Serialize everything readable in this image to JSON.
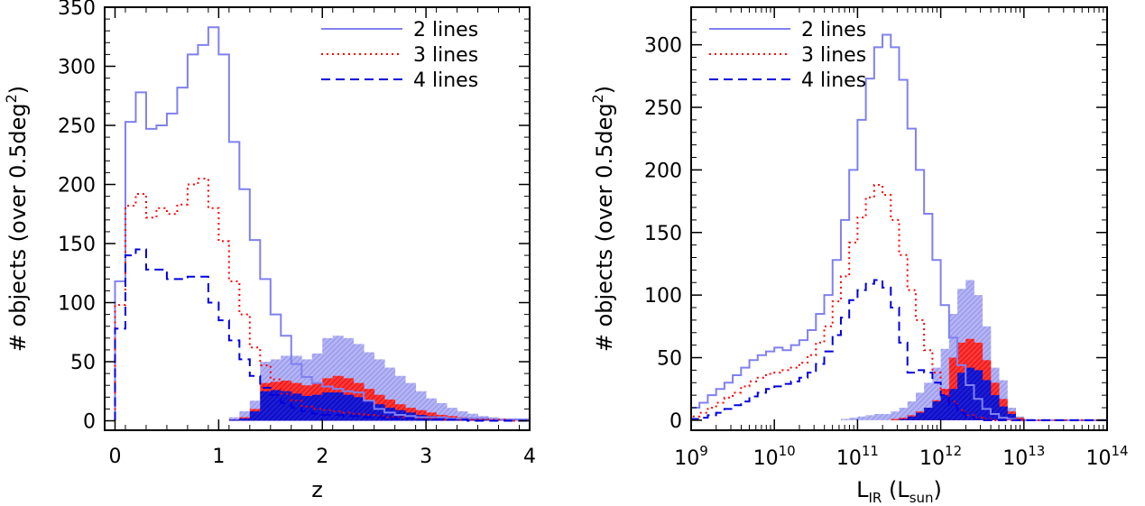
{
  "chart_data": [
    {
      "type": "histogram",
      "xlabel": "z",
      "ylabel": "# objects (over 0.5deg",
      "ylabel_sup": "2",
      "ylabel_end": ")",
      "xlim": [
        -0.1,
        4.0
      ],
      "ylim": [
        -8,
        350
      ],
      "xticks": [
        0,
        1,
        2,
        3,
        4
      ],
      "xtick_labels": [
        "0",
        "1",
        "2",
        "3",
        "4"
      ],
      "yticks": [
        0,
        50,
        100,
        150,
        200,
        250,
        300,
        350
      ],
      "ytick_labels": [
        "0",
        "50",
        "100",
        "150",
        "200",
        "250",
        "300",
        "350"
      ],
      "bin_edges": [
        0.0,
        0.1,
        0.2,
        0.3,
        0.4,
        0.5,
        0.6,
        0.7,
        0.8,
        0.9,
        1.0,
        1.1,
        1.2,
        1.3,
        1.4,
        1.5,
        1.6,
        1.7,
        1.8,
        1.9,
        2.0,
        2.1,
        2.2,
        2.3,
        2.4,
        2.5,
        2.6,
        2.7,
        2.8,
        2.9,
        3.0,
        3.1,
        3.2,
        3.3,
        3.4,
        3.5,
        3.6,
        3.7,
        3.8,
        3.9,
        4.0
      ],
      "grid": false,
      "legend": "top-right",
      "series": [
        {
          "name": "2 lines",
          "style": "solid",
          "color": "#8080f0",
          "values": [
            118,
            253,
            278,
            247,
            250,
            260,
            282,
            310,
            318,
            333,
            310,
            236,
            196,
            153,
            120,
            90,
            72,
            48,
            37,
            32,
            29,
            27,
            25,
            24,
            17,
            10,
            7,
            5,
            4,
            3,
            3,
            3,
            2,
            2,
            2,
            2,
            1,
            1,
            1,
            1
          ]
        },
        {
          "name": "3 lines",
          "style": "dotted",
          "color": "#ff0000",
          "values": [
            98,
            182,
            192,
            172,
            180,
            175,
            183,
            200,
            205,
            180,
            152,
            118,
            90,
            62,
            47,
            35,
            23,
            17,
            12,
            10,
            9,
            8,
            7,
            6,
            5,
            4,
            3,
            3,
            2,
            2,
            2,
            1,
            1,
            1,
            1,
            1,
            1,
            1,
            0,
            0
          ]
        },
        {
          "name": "4 lines",
          "style": "dashed",
          "color": "#0000e0",
          "values": [
            78,
            140,
            145,
            128,
            128,
            120,
            120,
            122,
            122,
            100,
            85,
            68,
            52,
            38,
            28,
            22,
            15,
            11,
            8,
            6,
            5,
            5,
            4,
            4,
            3,
            3,
            2,
            2,
            2,
            1,
            1,
            1,
            1,
            1,
            0,
            0,
            0,
            0,
            0,
            0
          ]
        }
      ],
      "filled_series": [
        {
          "color": "#9a9af0",
          "values": [
            0,
            0,
            0,
            0,
            0,
            0,
            0,
            0,
            0,
            0,
            0,
            3,
            8,
            17,
            50,
            52,
            55,
            55,
            52,
            57,
            70,
            72,
            70,
            65,
            58,
            52,
            45,
            38,
            32,
            25,
            19,
            15,
            11,
            8,
            6,
            4,
            3,
            2,
            2,
            2
          ]
        },
        {
          "color": "#ff2020",
          "values": [
            0,
            0,
            0,
            0,
            0,
            0,
            0,
            0,
            0,
            0,
            0,
            1,
            3,
            10,
            32,
            33,
            34,
            32,
            30,
            32,
            36,
            38,
            36,
            32,
            27,
            22,
            18,
            14,
            11,
            9,
            7,
            5,
            4,
            3,
            2,
            2,
            1,
            1,
            1,
            1
          ]
        },
        {
          "color": "#1010d0",
          "values": [
            0,
            0,
            0,
            0,
            0,
            0,
            0,
            0,
            0,
            0,
            0,
            1,
            2,
            8,
            25,
            26,
            25,
            23,
            21,
            22,
            24,
            24,
            22,
            20,
            17,
            14,
            11,
            9,
            7,
            5,
            4,
            3,
            2,
            2,
            1,
            1,
            1,
            1,
            0,
            0
          ]
        }
      ]
    },
    {
      "type": "histogram",
      "xlabel": "L",
      "xlabel_sub": "IR",
      "xlabel_mid": " (L",
      "xlabel_sub2": "sun",
      "xlabel_end": ")",
      "ylabel": "# objects (over 0.5deg",
      "ylabel_sup": "2",
      "ylabel_end": ")",
      "xscale": "log",
      "xlim": [
        9.0,
        14.0
      ],
      "ylim": [
        -8,
        330
      ],
      "xticks": [
        9,
        10,
        11,
        12,
        13,
        14
      ],
      "xtick_base": "10",
      "xtick_exponents": [
        "9",
        "10",
        "11",
        "12",
        "13",
        "14"
      ],
      "yticks": [
        0,
        50,
        100,
        150,
        200,
        250,
        300
      ],
      "ytick_labels": [
        "0",
        "50",
        "100",
        "150",
        "200",
        "250",
        "300"
      ],
      "bin_edges": [
        9.0,
        9.1,
        9.2,
        9.3,
        9.4,
        9.5,
        9.6,
        9.7,
        9.8,
        9.9,
        10.0,
        10.1,
        10.2,
        10.3,
        10.4,
        10.5,
        10.6,
        10.7,
        10.8,
        10.9,
        11.0,
        11.1,
        11.2,
        11.3,
        11.4,
        11.5,
        11.6,
        11.7,
        11.8,
        11.9,
        12.0,
        12.1,
        12.2,
        12.3,
        12.4,
        12.5,
        12.6,
        12.7,
        12.8,
        12.9,
        13.0,
        13.1,
        13.2,
        13.3,
        13.4,
        13.5,
        13.6,
        13.7,
        13.8,
        13.9,
        14.0
      ],
      "grid": false,
      "legend": "top-left",
      "series": [
        {
          "name": "2 lines",
          "style": "solid",
          "color": "#8080f0",
          "values": [
            10,
            14,
            20,
            25,
            30,
            36,
            42,
            48,
            52,
            55,
            58,
            56,
            60,
            64,
            72,
            85,
            100,
            128,
            160,
            200,
            240,
            273,
            298,
            308,
            298,
            272,
            233,
            200,
            165,
            128,
            92,
            66,
            44,
            28,
            17,
            9,
            5,
            2,
            1,
            0,
            0,
            0,
            0,
            0,
            0,
            0,
            0,
            0,
            0,
            0
          ]
        },
        {
          "name": "3 lines",
          "style": "dotted",
          "color": "#ff0000",
          "values": [
            3,
            6,
            10,
            14,
            18,
            22,
            27,
            31,
            34,
            37,
            38,
            40,
            42,
            46,
            52,
            62,
            75,
            95,
            115,
            142,
            162,
            178,
            188,
            180,
            160,
            132,
            104,
            80,
            56,
            38,
            24,
            15,
            8,
            4,
            2,
            1,
            0,
            0,
            0,
            0,
            0,
            0,
            0,
            0,
            0,
            0,
            0,
            0,
            0,
            0
          ]
        },
        {
          "name": "4 lines",
          "style": "dashed",
          "color": "#0000e0",
          "values": [
            1,
            2,
            4,
            6,
            9,
            12,
            15,
            19,
            22,
            25,
            27,
            29,
            31,
            34,
            38,
            45,
            55,
            68,
            82,
            96,
            104,
            109,
            112,
            106,
            90,
            62,
            38,
            40,
            38,
            30,
            20,
            12,
            6,
            3,
            1,
            0,
            0,
            0,
            0,
            0,
            0,
            0,
            0,
            0,
            0,
            0,
            0,
            0,
            0,
            0
          ]
        }
      ],
      "filled_series": [
        {
          "color": "#9a9af0",
          "values": [
            0,
            0,
            0,
            0,
            0,
            0,
            0,
            0,
            0,
            0,
            0,
            0,
            0,
            0,
            0,
            0,
            0,
            0,
            1,
            2,
            3,
            4,
            5,
            5,
            7,
            10,
            15,
            22,
            30,
            42,
            57,
            85,
            105,
            112,
            100,
            75,
            42,
            32,
            10,
            3,
            1,
            0,
            0,
            0,
            0,
            0,
            0,
            0,
            0,
            0
          ]
        },
        {
          "color": "#ff2020",
          "values": [
            0,
            0,
            0,
            0,
            0,
            0,
            0,
            0,
            0,
            0,
            0,
            0,
            0,
            0,
            0,
            0,
            0,
            0,
            0,
            0,
            0,
            0,
            0,
            0,
            1,
            2,
            4,
            7,
            10,
            16,
            25,
            50,
            62,
            65,
            62,
            48,
            30,
            17,
            7,
            2,
            0,
            0,
            0,
            0,
            0,
            0,
            0,
            0,
            0,
            0
          ]
        },
        {
          "color": "#1010d0",
          "values": [
            0,
            0,
            0,
            0,
            0,
            0,
            0,
            0,
            0,
            0,
            0,
            0,
            0,
            0,
            0,
            0,
            0,
            0,
            0,
            0,
            0,
            0,
            0,
            0,
            0,
            1,
            3,
            6,
            10,
            15,
            20,
            25,
            38,
            42,
            40,
            32,
            20,
            11,
            5,
            1,
            0,
            0,
            0,
            0,
            0,
            0,
            0,
            0,
            0,
            0
          ]
        }
      ]
    }
  ]
}
